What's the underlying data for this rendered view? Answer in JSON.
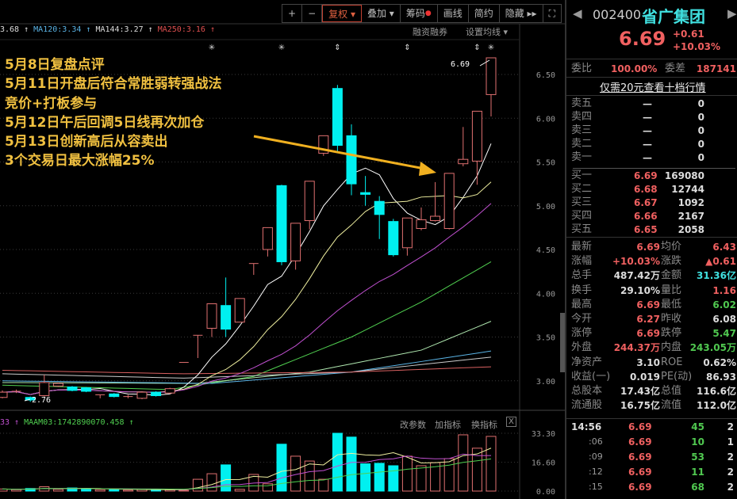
{
  "toolbar": {
    "plus": "+",
    "minus": "−",
    "fuquan": "复权 ▾",
    "diejia": "叠加 ▾",
    "chouma": "筹码",
    "huaxian": "画线",
    "jianyue": "简约",
    "yincang": "隐藏 ▸▸",
    "fullscreen": "⛶"
  },
  "ma_header": [
    {
      "text": "3.68 ↑",
      "color": "#dddddd"
    },
    {
      "text": "MA120:3.34 ↑",
      "color": "#5ab4e6"
    },
    {
      "text": "MA144:3.27 ↑",
      "color": "#dddddd"
    },
    {
      "text": "MA250:3.16 ↑",
      "color": "#e05050"
    }
  ],
  "links": {
    "margin": "融资融券",
    "set_ma": "设置均线 ▾"
  },
  "annotation": [
    "5月8日复盘点评",
    "5月11日开盘后符合常胜弱转强战法",
    "竞价+打板参与",
    "5月12日午后回调5日线再次加仓",
    "5月13日创新高后从容卖出",
    "3个交易日最大涨幅25%"
  ],
  "volume_header": {
    "left": "33 ↑",
    "maam03": "MAAM03:1742890070.458 ↑"
  },
  "volume_buttons": {
    "edit": "改参数",
    "add": "加指标",
    "swap": "换指标",
    "close": "X"
  },
  "chart_data": [
    {
      "type": "candlestick",
      "price_ticks": [
        "6.50",
        "6.00",
        "5.50",
        "5.00",
        "4.50",
        "4.00",
        "3.50",
        "3.00"
      ],
      "ylim": [
        2.7,
        6.75
      ],
      "high_label": "6.69",
      "low_label": "2.76",
      "up_color": "#e07070",
      "down_color": "#00f0f0",
      "candles_ohlc": [
        [
          2.81,
          2.89,
          2.8,
          2.87
        ],
        [
          2.88,
          2.9,
          2.86,
          2.88
        ],
        [
          2.81,
          2.82,
          2.76,
          2.78
        ],
        [
          2.83,
          3.07,
          2.82,
          2.98
        ],
        [
          2.94,
          2.98,
          2.93,
          2.97
        ],
        [
          2.93,
          2.94,
          2.88,
          2.89
        ],
        [
          2.92,
          2.93,
          2.87,
          2.88
        ],
        [
          2.84,
          2.84,
          2.8,
          2.84
        ],
        [
          2.85,
          2.86,
          2.81,
          2.82
        ],
        [
          2.82,
          2.84,
          2.8,
          2.82
        ],
        [
          2.8,
          2.88,
          2.79,
          2.87
        ],
        [
          2.87,
          2.88,
          2.82,
          2.83
        ],
        [
          2.86,
          2.92,
          2.85,
          2.91
        ],
        [
          3.21,
          3.21,
          3.21,
          3.21
        ],
        [
          3.52,
          3.52,
          3.26,
          3.52
        ],
        [
          3.6,
          3.88,
          3.5,
          3.88
        ],
        [
          3.86,
          4.18,
          3.5,
          3.59
        ],
        [
          3.67,
          3.94,
          3.67,
          3.94
        ],
        [
          4.34,
          4.34,
          4.21,
          4.34
        ],
        [
          4.5,
          4.75,
          4.42,
          4.75
        ],
        [
          5.23,
          5.24,
          4.32,
          4.36
        ],
        [
          4.37,
          4.8,
          4.27,
          4.8
        ],
        [
          4.83,
          5.28,
          4.73,
          5.28
        ],
        [
          5.6,
          5.8,
          5.57,
          5.8
        ],
        [
          6.34,
          6.38,
          5.6,
          5.69
        ],
        [
          5.8,
          5.93,
          5.12,
          5.25
        ],
        [
          5.15,
          5.34,
          5.0,
          5.13
        ],
        [
          5.05,
          5.11,
          4.62,
          4.9
        ],
        [
          4.82,
          4.85,
          4.42,
          4.44
        ],
        [
          4.52,
          4.86,
          4.43,
          4.86
        ],
        [
          4.74,
          4.98,
          4.72,
          4.84
        ],
        [
          4.83,
          5.27,
          4.82,
          4.88
        ],
        [
          4.74,
          5.37,
          4.73,
          5.37
        ],
        [
          5.48,
          5.9,
          5.45,
          5.53
        ],
        [
          5.51,
          6.08,
          5.24,
          6.08
        ],
        [
          6.27,
          6.69,
          6.02,
          6.69
        ]
      ],
      "computed_ma": [
        {
          "period": 5,
          "color": "#ffffff"
        },
        {
          "period": 10,
          "color": "#f0f0a0"
        },
        {
          "period": 20,
          "color": "#c050d0"
        }
      ],
      "ma_lines": [
        {
          "name": "MA30",
          "color": "#50d050",
          "points": [
            [
              0,
              2.95
            ],
            [
              12,
              2.9
            ],
            [
              18,
              3.05
            ],
            [
              25,
              3.5
            ],
            [
              30,
              3.9
            ],
            [
              35,
              4.36
            ]
          ]
        },
        {
          "name": "MA60",
          "color": "#b0e8b0",
          "points": [
            [
              0,
              2.98
            ],
            [
              14,
              2.97
            ],
            [
              22,
              3.1
            ],
            [
              30,
              3.35
            ],
            [
              35,
              3.68
            ]
          ]
        },
        {
          "name": "MA120",
          "color": "#5ab4e6",
          "points": [
            [
              0,
              3.0
            ],
            [
              15,
              2.97
            ],
            [
              25,
              3.1
            ],
            [
              35,
              3.34
            ]
          ]
        },
        {
          "name": "MA144",
          "color": "#cccccc",
          "points": [
            [
              0,
              3.08
            ],
            [
              13,
              3.03
            ],
            [
              25,
              3.1
            ],
            [
              35,
              3.27
            ]
          ]
        },
        {
          "name": "MA250",
          "color": "#d86060",
          "points": [
            [
              0,
              3.12
            ],
            [
              13,
              3.08
            ],
            [
              25,
              3.1
            ],
            [
              35,
              3.16
            ]
          ]
        }
      ],
      "markers": [
        {
          "index": 15,
          "symbol": "✳"
        },
        {
          "index": 20,
          "symbol": "✳"
        },
        {
          "index": 24,
          "symbol": "⇕"
        },
        {
          "index": 29,
          "symbol": "⇕"
        },
        {
          "index": 34,
          "symbol": "⇕"
        },
        {
          "index": 35,
          "symbol": "✳"
        }
      ]
    },
    {
      "type": "bar",
      "volume_ticks": [
        "33.30",
        "16.60",
        "0.00"
      ],
      "ylim": [
        0,
        33.3
      ],
      "values": [
        1.2,
        0.8,
        1.5,
        2.5,
        1.0,
        1.8,
        1.2,
        0.8,
        1.0,
        0.6,
        1.0,
        0.8,
        0.7,
        0.5,
        6.8,
        10.0,
        15.1,
        1.0,
        9.6,
        4.2,
        27.0,
        20.1,
        17.3,
        6.8,
        33.3,
        31.1,
        15.7,
        16.0,
        14.6,
        20.1,
        14.6,
        16.4,
        18.7,
        32.4,
        24.7,
        31.5
      ],
      "computed_ma": [
        {
          "period": 5,
          "color": "#f0f0a0"
        },
        {
          "period": 10,
          "color": "#c050d0"
        },
        {
          "period": 20,
          "color": "#50d050"
        }
      ]
    }
  ],
  "quote": {
    "code": "002400",
    "name": "省广集团",
    "price": "6.69",
    "change": "+0.61",
    "change_pct": "+10.03%",
    "weibi_label": "委比",
    "weibi": "100.00%",
    "weicha_label": "委差",
    "weicha": "187141",
    "promo": "仅需20元查看十档行情",
    "sell": [
      {
        "label": "卖五",
        "price": "—",
        "vol": "0"
      },
      {
        "label": "卖四",
        "price": "—",
        "vol": "0"
      },
      {
        "label": "卖三",
        "price": "—",
        "vol": "0"
      },
      {
        "label": "卖二",
        "price": "—",
        "vol": "0"
      },
      {
        "label": "卖一",
        "price": "—",
        "vol": "0"
      }
    ],
    "buy": [
      {
        "label": "买一",
        "price": "6.69",
        "vol": "169080"
      },
      {
        "label": "买二",
        "price": "6.68",
        "vol": "12744"
      },
      {
        "label": "买三",
        "price": "6.67",
        "vol": "1092"
      },
      {
        "label": "买四",
        "price": "6.66",
        "vol": "2167"
      },
      {
        "label": "买五",
        "price": "6.65",
        "vol": "2058"
      }
    ],
    "stats": [
      {
        "l1": "最新",
        "v1": "6.69",
        "c1": "r",
        "l2": "均价",
        "v2": "6.43",
        "c2": "r"
      },
      {
        "l1": "涨幅",
        "v1": "+10.03%",
        "c1": "r",
        "l2": "涨跌",
        "v2": "▲0.61",
        "c2": "r"
      },
      {
        "l1": "总手",
        "v1": "487.42万",
        "c1": "w",
        "l2": "金额",
        "v2": "31.36亿",
        "c2": "c"
      },
      {
        "l1": "换手",
        "v1": "29.10%",
        "c1": "w",
        "l2": "量比",
        "v2": "1.16",
        "c2": "r"
      },
      {
        "l1": "最高",
        "v1": "6.69",
        "c1": "r",
        "l2": "最低",
        "v2": "6.02",
        "c2": "g"
      },
      {
        "l1": "今开",
        "v1": "6.27",
        "c1": "r",
        "l2": "昨收",
        "v2": "6.08",
        "c2": "w"
      },
      {
        "l1": "涨停",
        "v1": "6.69",
        "c1": "r",
        "l2": "跌停",
        "v2": "5.47",
        "c2": "g"
      },
      {
        "l1": "外盘",
        "v1": "244.37万",
        "c1": "r",
        "l2": "内盘",
        "v2": "243.05万",
        "c2": "g"
      },
      {
        "l1": "净资产",
        "v1": "3.10",
        "c1": "w",
        "l2": "ROE",
        "v2": "0.62%",
        "c2": "w"
      },
      {
        "l1": "收益(一)",
        "v1": "0.019",
        "c1": "w",
        "l2": "PE(动)",
        "v2": "86.93",
        "c2": "w"
      },
      {
        "l1": "总股本",
        "v1": "17.43亿",
        "c1": "w",
        "l2": "总值",
        "v2": "116.6亿",
        "c2": "w"
      },
      {
        "l1": "流通股",
        "v1": "16.75亿",
        "c1": "w",
        "l2": "流值",
        "v2": "112.0亿",
        "c2": "w"
      }
    ],
    "ticks": [
      {
        "time": "14:56",
        "price": "6.69",
        "vol": "45",
        "n": "2"
      },
      {
        "time": ":06",
        "price": "6.69",
        "vol": "10",
        "n": "1"
      },
      {
        "time": ":09",
        "price": "6.69",
        "vol": "53",
        "n": "2"
      },
      {
        "time": ":12",
        "price": "6.69",
        "vol": "11",
        "n": "2"
      },
      {
        "time": ":15",
        "price": "6.69",
        "vol": "68",
        "n": "2"
      }
    ]
  }
}
